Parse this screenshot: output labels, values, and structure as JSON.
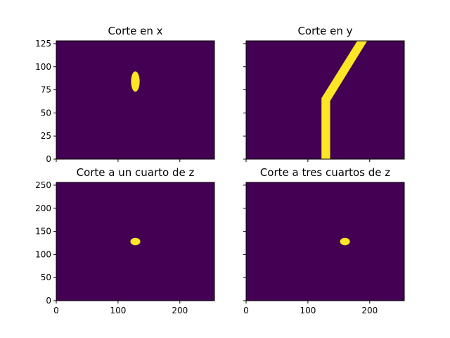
{
  "colors": {
    "background": "#440154",
    "mask": "#fde725",
    "axis": "#000000",
    "figure": "#ffffff"
  },
  "chart_data": [
    {
      "type": "heatmap",
      "title": "Corte en x",
      "xlim": [
        0,
        256
      ],
      "ylim": [
        0,
        128
      ],
      "xticks": [
        0,
        100,
        200
      ],
      "yticks": [
        0,
        25,
        50,
        75,
        100,
        125
      ],
      "show_xtick_labels": false,
      "show_ytick_labels": true,
      "regions": [
        {
          "shape": "ellipse",
          "cx": 128,
          "cy": 84,
          "rx": 7,
          "ry": 11
        }
      ]
    },
    {
      "type": "heatmap",
      "title": "Corte en y",
      "xlim": [
        0,
        256
      ],
      "ylim": [
        0,
        128
      ],
      "xticks": [
        0,
        100,
        200
      ],
      "yticks": [
        0,
        25,
        50,
        75,
        100,
        125
      ],
      "show_xtick_labels": false,
      "show_ytick_labels": false,
      "regions": [
        {
          "shape": "polygon",
          "points": [
            [
              122,
              0
            ],
            [
              136,
              0
            ],
            [
              136,
              63
            ],
            [
              196,
              128
            ],
            [
              180,
              128
            ],
            [
              122,
              66
            ]
          ]
        }
      ]
    },
    {
      "type": "heatmap",
      "title": "Corte a un cuarto de z",
      "xlim": [
        0,
        256
      ],
      "ylim": [
        0,
        256
      ],
      "xticks": [
        0,
        100,
        200
      ],
      "yticks": [
        0,
        50,
        100,
        150,
        200,
        250
      ],
      "show_xtick_labels": true,
      "show_ytick_labels": true,
      "regions": [
        {
          "shape": "ellipse",
          "cx": 128,
          "cy": 128,
          "rx": 8,
          "ry": 8
        }
      ]
    },
    {
      "type": "heatmap",
      "title": "Corte a tres cuartos de z",
      "xlim": [
        0,
        256
      ],
      "ylim": [
        0,
        256
      ],
      "xticks": [
        0,
        100,
        200
      ],
      "yticks": [
        0,
        50,
        100,
        150,
        200,
        250
      ],
      "show_xtick_labels": true,
      "show_ytick_labels": false,
      "regions": [
        {
          "shape": "ellipse",
          "cx": 160,
          "cy": 128,
          "rx": 8,
          "ry": 8
        }
      ]
    }
  ]
}
